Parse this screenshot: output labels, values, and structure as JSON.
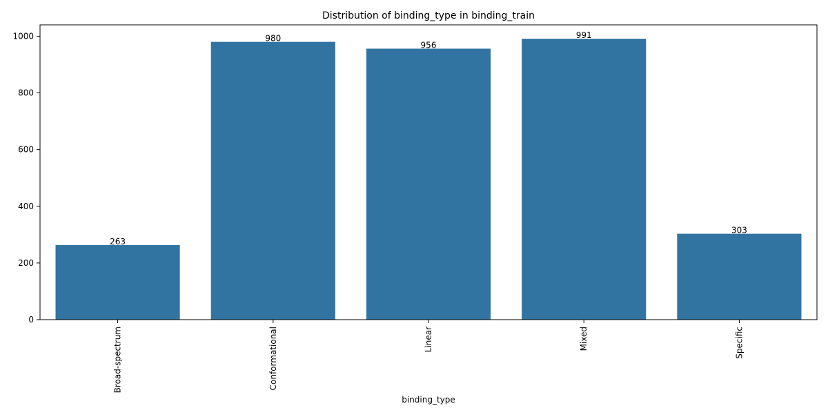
{
  "chart_data": {
    "type": "bar",
    "title": "Distribution of binding_type in binding_train",
    "xlabel": "binding_type",
    "ylabel": "",
    "categories": [
      "Broad-spectrum",
      "Conformational",
      "Linear",
      "Mixed",
      "Specific"
    ],
    "values": [
      263,
      980,
      956,
      991,
      303
    ],
    "data_labels": [
      "263",
      "980",
      "956",
      "991",
      "303"
    ],
    "ylim": [
      0,
      1040
    ],
    "yticks": [
      0,
      200,
      400,
      600,
      800,
      1000
    ],
    "ytick_labels": [
      "0",
      "200",
      "400",
      "600",
      "800",
      "1000"
    ],
    "bar_color": "#3274a1",
    "grid": false,
    "legend": "none",
    "xtick_rotation": "vertical"
  }
}
